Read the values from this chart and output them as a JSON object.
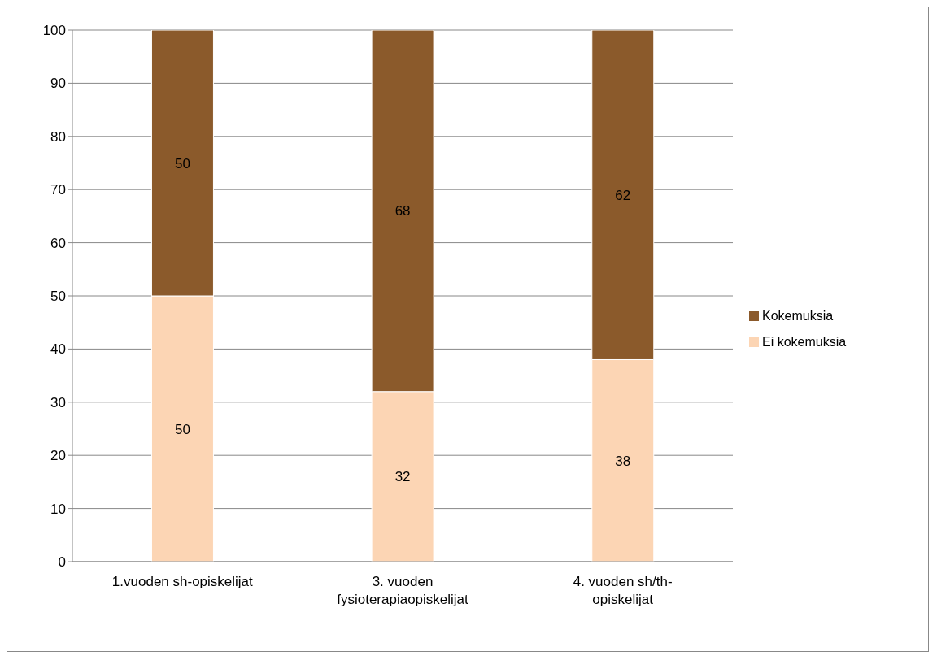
{
  "chart_data": {
    "type": "bar",
    "stacked": true,
    "categories": [
      "1.vuoden sh-opiskelijat",
      "3. vuoden fysioterapiaopiskelijat",
      "4. vuoden sh/th-opiskelijat"
    ],
    "series": [
      {
        "name": "Ei kokemuksia",
        "color": "#fcd5b4",
        "values": [
          50,
          32,
          38
        ]
      },
      {
        "name": "Kokemuksia",
        "color": "#8b5a2b",
        "values": [
          50,
          68,
          62
        ]
      }
    ],
    "ylim": [
      0,
      100
    ],
    "yticks": [
      0,
      10,
      20,
      30,
      40,
      50,
      60,
      70,
      80,
      90,
      100
    ],
    "grid": "y",
    "legend": "right",
    "data_labels": true
  }
}
